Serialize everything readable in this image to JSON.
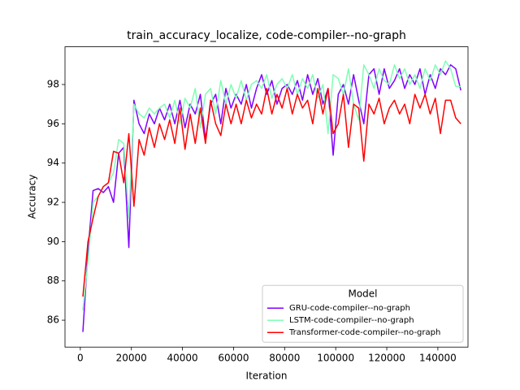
{
  "chart_data": {
    "type": "line",
    "title": "train_accuracy_localize, code-compiler--no-graph",
    "x_label": "Iteration",
    "y_label": "Accuracy",
    "legend_title": "Model",
    "legend": "lower right",
    "x": [
      1000,
      3000,
      5000,
      7000,
      9000,
      11000,
      13000,
      15000,
      17000,
      19000,
      21000,
      23000,
      25000,
      27000,
      29000,
      31000,
      33000,
      35000,
      37000,
      39000,
      41000,
      43000,
      45000,
      47000,
      49000,
      51000,
      53000,
      55000,
      57000,
      59000,
      61000,
      63000,
      65000,
      67000,
      69000,
      71000,
      73000,
      75000,
      77000,
      79000,
      81000,
      83000,
      85000,
      87000,
      89000,
      91000,
      93000,
      95000,
      97000,
      99000,
      101000,
      103000,
      105000,
      107000,
      109000,
      111000,
      113000,
      115000,
      117000,
      119000,
      121000,
      123000,
      125000,
      127000,
      129000,
      131000,
      133000,
      135000,
      137000,
      139000,
      141000,
      143000,
      145000,
      147000,
      149000
    ],
    "series": [
      {
        "name": "GRU-code-compiler--no-graph",
        "color": "#8000ff",
        "values": [
          85.4,
          89.5,
          92.6,
          92.7,
          92.5,
          92.8,
          92.0,
          94.5,
          94.8,
          89.7,
          97.2,
          96.0,
          95.5,
          96.5,
          96.0,
          96.8,
          96.2,
          97.0,
          96.0,
          97.2,
          95.8,
          97.0,
          96.5,
          97.5,
          95.2,
          97.0,
          97.5,
          96.0,
          97.8,
          96.8,
          97.5,
          97.0,
          98.0,
          96.8,
          97.8,
          98.5,
          97.5,
          98.2,
          97.0,
          97.8,
          98.0,
          97.5,
          98.2,
          97.2,
          98.5,
          97.5,
          98.3,
          97.0,
          97.8,
          94.4,
          97.5,
          98.0,
          97.0,
          98.5,
          97.2,
          96.0,
          98.5,
          98.8,
          97.5,
          98.8,
          97.8,
          98.2,
          98.8,
          97.8,
          98.5,
          98.0,
          98.8,
          97.5,
          98.5,
          97.8,
          98.8,
          98.5,
          99.0,
          98.8,
          97.7
        ]
      },
      {
        "name": "LSTM-code-compiler--no-graph",
        "color": "#80feb3",
        "values": [
          86.5,
          89.0,
          92.0,
          92.3,
          92.8,
          93.0,
          93.5,
          95.2,
          95.0,
          91.2,
          97.0,
          96.5,
          96.3,
          96.8,
          96.5,
          96.8,
          97.0,
          96.3,
          97.2,
          96.0,
          97.3,
          96.8,
          97.8,
          95.8,
          97.5,
          97.8,
          96.5,
          98.2,
          97.0,
          98.0,
          97.3,
          98.2,
          97.2,
          98.0,
          98.2,
          97.8,
          98.5,
          97.3,
          98.0,
          98.3,
          97.8,
          98.5,
          97.5,
          98.3,
          97.8,
          98.5,
          97.3,
          98.0,
          95.5,
          98.5,
          98.3,
          97.5,
          98.8,
          97.0,
          96.2,
          99.0,
          98.5,
          97.8,
          98.8,
          98.2,
          98.0,
          99.0,
          98.3,
          98.8,
          98.0,
          98.5,
          97.8,
          98.8,
          98.2,
          99.0,
          98.5,
          99.2,
          98.8,
          97.9,
          97.9
        ]
      },
      {
        "name": "Transformer-code-compiler--no-graph",
        "color": "#ff0000",
        "values": [
          87.2,
          90.0,
          91.2,
          92.3,
          92.8,
          93.0,
          94.6,
          94.5,
          93.0,
          95.5,
          91.8,
          95.2,
          94.4,
          95.8,
          94.8,
          96.0,
          95.2,
          96.2,
          95.0,
          96.8,
          94.7,
          96.5,
          95.0,
          96.8,
          95.0,
          97.2,
          96.0,
          95.4,
          97.0,
          96.0,
          97.0,
          96.0,
          97.2,
          96.3,
          97.0,
          96.5,
          97.8,
          96.5,
          97.5,
          96.8,
          97.8,
          96.5,
          97.5,
          96.8,
          97.2,
          96.0,
          97.8,
          96.5,
          97.8,
          95.5,
          96.0,
          97.5,
          94.8,
          97.0,
          96.8,
          94.1,
          97.0,
          96.5,
          97.3,
          96.0,
          96.8,
          97.2,
          96.5,
          97.0,
          96.0,
          97.5,
          96.8,
          97.5,
          96.5,
          97.3,
          95.5,
          97.2,
          97.2,
          96.3,
          96.0
        ]
      }
    ],
    "xlim": [
      -6000,
      151800
    ],
    "ylim": [
      84.63,
      99.92
    ],
    "xticks": [
      0,
      20000,
      40000,
      60000,
      80000,
      100000,
      120000,
      140000
    ],
    "yticks": [
      86,
      88,
      90,
      92,
      94,
      96,
      98
    ]
  }
}
